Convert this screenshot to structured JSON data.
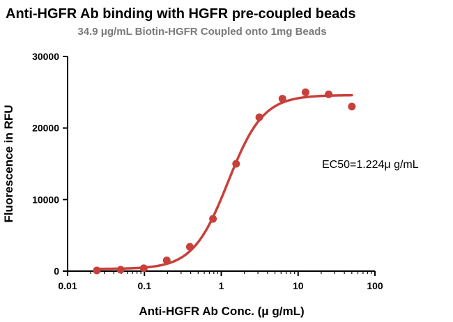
{
  "chart_data": {
    "type": "scatter",
    "title": "Anti-HGFR Ab binding with HGFR pre-coupled beads",
    "subtitle": "34.9 μg/mL Biotin-HGFR Coupled onto 1mg Beads",
    "xlabel": "Anti-HGFR Ab Conc. (μ g/mL)",
    "ylabel": "Fluorescence in RFU",
    "x_scale": "log",
    "xlim": [
      0.01,
      100
    ],
    "ylim": [
      0,
      30000
    ],
    "x_ticks": [
      "0.01",
      "0.1",
      "1",
      "10",
      "100"
    ],
    "y_ticks": [
      "0",
      "10000",
      "20000",
      "30000"
    ],
    "annotation": "EC50=1.224μ g/mL",
    "grid": false,
    "color": "#c8403a",
    "series": [
      {
        "x": [
          0.024,
          0.049,
          0.098,
          0.195,
          0.39,
          0.78,
          1.56,
          3.125,
          6.25,
          12.5,
          25,
          50
        ],
        "y": [
          100,
          200,
          400,
          1500,
          3400,
          7300,
          15000,
          21500,
          24100,
          25000,
          24700,
          23000
        ]
      }
    ],
    "fit": {
      "bottom": 300,
      "top": 24600,
      "ec50": 1.224,
      "hill": 1.9,
      "x_range": [
        0.024,
        50
      ]
    }
  }
}
